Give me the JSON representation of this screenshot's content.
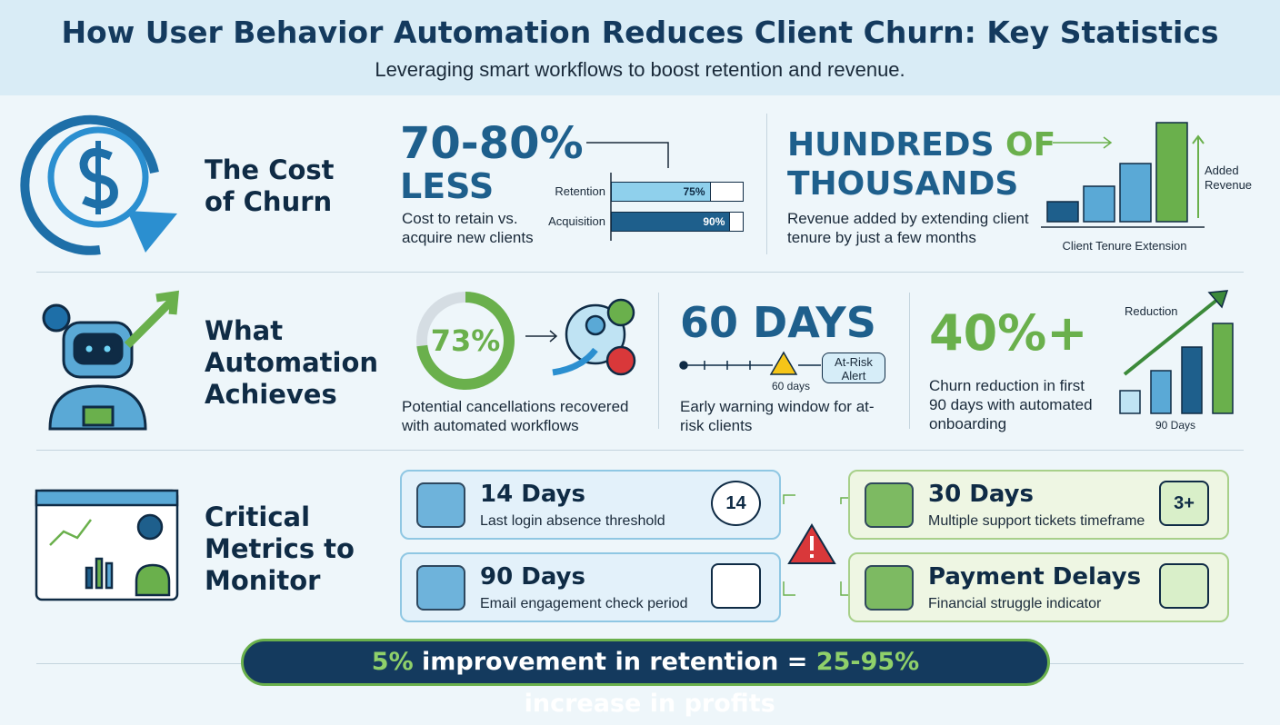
{
  "header": {
    "title": "How User Behavior Automation Reduces Client Churn: Key Statistics",
    "subtitle": "Leveraging smart workflows to boost retention and revenue."
  },
  "cost": {
    "title": "The Cost of Churn",
    "stat": {
      "big": "70-80%",
      "big2": "LESS",
      "desc": "Cost to retain vs. acquire new clients",
      "bars": [
        {
          "label": "Retention",
          "value": 75,
          "value_label": "75%"
        },
        {
          "label": "Acquisition",
          "value": 90,
          "value_label": "90%"
        }
      ]
    },
    "revenue": {
      "big_a": "HUNDREDS",
      "big_b": "OF",
      "big_c": "THOUSANDS",
      "desc": "Revenue added by extending client tenure by just a few months",
      "axis": "Client Tenure Extension",
      "annotation": "Added Revenue"
    }
  },
  "automation": {
    "title": "What Automation Achieves",
    "recovered": {
      "value": 73,
      "label": "73%",
      "desc": "Potential cancellations recovered with automated workflows"
    },
    "warning": {
      "big": "60 DAYS",
      "marker": "60 days",
      "alert": "At-Risk Alert",
      "desc": "Early warning window for at-risk clients"
    },
    "reduction": {
      "big": "40%+",
      "desc": "Churn reduction in first 90 days with automated onboarding",
      "chart_label": "Reduction",
      "axis": "90 Days"
    }
  },
  "metrics": {
    "title": "Critical Metrics to Monitor",
    "cards": [
      {
        "title": "14 Days",
        "desc": "Last login absence threshold",
        "badge": "14"
      },
      {
        "title": "90 Days",
        "desc": "Email engagement check period"
      },
      {
        "title": "30 Days",
        "desc": "Multiple support tickets timeframe",
        "badge": "3+"
      },
      {
        "title": "Payment Delays",
        "desc": "Financial struggle indicator"
      }
    ]
  },
  "footer": {
    "parts": [
      "5%",
      " improvement in retention = ",
      "25-95%",
      " increase in profits"
    ]
  }
}
